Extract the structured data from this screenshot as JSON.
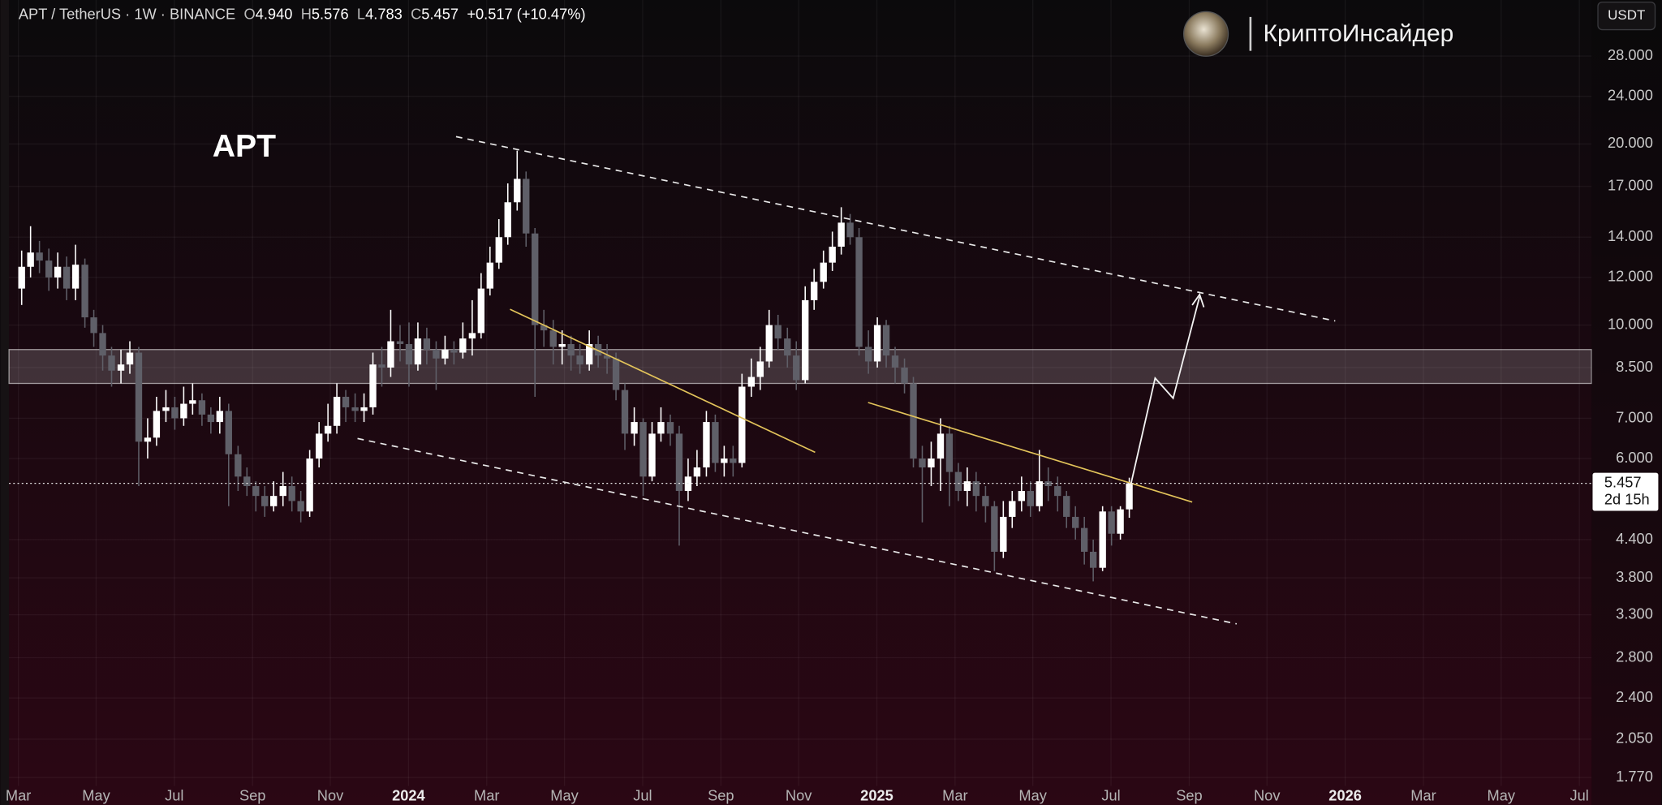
{
  "header": {
    "symbol": "APT / TetherUS · 1W · BINANCE",
    "ohlc": [
      {
        "label": "O",
        "value": "4.940"
      },
      {
        "label": "H",
        "value": "5.576"
      },
      {
        "label": "L",
        "value": "4.783"
      },
      {
        "label": "C",
        "value": "5.457"
      }
    ],
    "change": "+0.517 (+10.47%)"
  },
  "chart_data": {
    "type": "candlestick",
    "title": "APT",
    "watermark": "КриптоИнсайдер",
    "currency": "USDT",
    "countdown": "2d 15h",
    "up_color": "#ffffff",
    "down_color": "#5f5f68",
    "log_y": true,
    "grid": true,
    "xlim": [
      2023.147,
      2026.526
    ],
    "ylim": [
      1.714,
      34.7
    ],
    "x": [
      2023.174,
      2023.193,
      2023.212,
      2023.232,
      2023.251,
      2023.27,
      2023.289,
      2023.309,
      2023.328,
      2023.347,
      2023.366,
      2023.386,
      2023.405,
      2023.424,
      2023.443,
      2023.462,
      2023.482,
      2023.501,
      2023.52,
      2023.539,
      2023.559,
      2023.578,
      2023.597,
      2023.616,
      2023.636,
      2023.655,
      2023.674,
      2023.693,
      2023.712,
      2023.732,
      2023.751,
      2023.77,
      2023.789,
      2023.809,
      2023.828,
      2023.847,
      2023.866,
      2023.886,
      2023.905,
      2023.924,
      2023.943,
      2023.962,
      2023.982,
      2024.001,
      2024.02,
      2024.039,
      2024.059,
      2024.078,
      2024.097,
      2024.116,
      2024.136,
      2024.155,
      2024.174,
      2024.193,
      2024.212,
      2024.232,
      2024.251,
      2024.27,
      2024.289,
      2024.309,
      2024.328,
      2024.347,
      2024.366,
      2024.386,
      2024.405,
      2024.424,
      2024.443,
      2024.462,
      2024.482,
      2024.501,
      2024.52,
      2024.539,
      2024.559,
      2024.578,
      2024.597,
      2024.616,
      2024.636,
      2024.655,
      2024.674,
      2024.693,
      2024.712,
      2024.732,
      2024.751,
      2024.77,
      2024.789,
      2024.809,
      2024.828,
      2024.847,
      2024.866,
      2024.886,
      2024.905,
      2024.924,
      2024.943,
      2024.962,
      2024.982,
      2025.001,
      2025.02,
      2025.039,
      2025.059,
      2025.078,
      2025.097,
      2025.116,
      2025.136,
      2025.155,
      2025.174,
      2025.193,
      2025.212,
      2025.232,
      2025.251,
      2025.27,
      2025.289,
      2025.309,
      2025.328,
      2025.347,
      2025.366,
      2025.386,
      2025.405,
      2025.424,
      2025.443,
      2025.462,
      2025.482,
      2025.501,
      2025.52,
      2025.539
    ],
    "open": [
      11.5,
      12.5,
      13.2,
      12.8,
      12.0,
      12.5,
      11.5,
      12.6,
      10.3,
      9.7,
      8.9,
      8.4,
      8.6,
      9.0,
      6.4,
      6.5,
      7.2,
      7.3,
      7.0,
      7.4,
      7.5,
      7.1,
      6.9,
      7.2,
      6.1,
      5.6,
      5.4,
      5.2,
      5.0,
      5.2,
      5.4,
      5.1,
      4.9,
      6.0,
      6.6,
      6.8,
      7.6,
      7.3,
      7.2,
      7.3,
      8.6,
      8.5,
      9.4,
      9.3,
      8.6,
      9.5,
      9.1,
      8.8,
      9.1,
      9.0,
      9.5,
      9.7,
      11.5,
      12.7,
      14.0,
      16.0,
      17.5,
      14.2,
      10.0,
      9.8,
      9.2,
      9.3,
      8.9,
      8.6,
      9.3,
      8.9,
      8.8,
      7.8,
      6.6,
      6.9,
      5.6,
      6.6,
      6.9,
      6.6,
      5.3,
      5.6,
      5.8,
      6.9,
      5.9,
      6.0,
      5.9,
      7.9,
      8.2,
      8.7,
      10.0,
      9.5,
      8.9,
      8.1,
      11.0,
      11.8,
      12.7,
      13.5,
      14.8,
      14.0,
      9.2,
      8.7,
      10.0,
      8.9,
      8.5,
      8.0,
      6.0,
      5.8,
      6.0,
      6.6,
      5.7,
      5.3,
      5.5,
      5.2,
      5.0,
      4.2,
      4.8,
      5.1,
      5.3,
      5.0,
      5.5,
      5.4,
      5.2,
      4.8,
      4.6,
      4.2,
      3.95,
      4.9,
      4.5,
      4.94
    ],
    "high": [
      13.3,
      14.6,
      13.8,
      13.4,
      13.2,
      13.0,
      13.6,
      12.9,
      10.6,
      10.0,
      9.2,
      9.1,
      9.4,
      9.2,
      7.0,
      7.6,
      7.8,
      7.6,
      7.9,
      8.0,
      7.7,
      7.3,
      7.6,
      7.4,
      6.3,
      5.8,
      5.5,
      5.4,
      5.5,
      5.7,
      5.6,
      5.3,
      6.2,
      6.9,
      7.4,
      8.0,
      7.8,
      7.7,
      7.7,
      9.0,
      9.2,
      10.6,
      10.0,
      10.1,
      10.1,
      9.9,
      9.4,
      9.6,
      9.4,
      10.1,
      11.0,
      12.2,
      13.5,
      15.0,
      17.2,
      19.5,
      18.0,
      14.5,
      10.6,
      10.2,
      9.8,
      9.6,
      9.3,
      9.8,
      9.6,
      9.3,
      9.0,
      8.0,
      7.3,
      7.0,
      6.9,
      7.3,
      7.1,
      6.8,
      6.0,
      6.2,
      7.2,
      7.1,
      6.3,
      6.3,
      8.3,
      8.8,
      9.2,
      10.6,
      10.4,
      9.9,
      9.4,
      11.6,
      12.4,
      13.3,
      14.3,
      15.7,
      15.3,
      14.5,
      9.8,
      10.3,
      10.2,
      9.2,
      8.8,
      8.2,
      6.3,
      6.4,
      7.0,
      6.8,
      5.9,
      5.8,
      5.7,
      5.4,
      5.1,
      5.1,
      5.3,
      5.6,
      5.5,
      6.2,
      5.8,
      5.6,
      5.3,
      5.0,
      4.8,
      4.4,
      5.0,
      5.0,
      5.0,
      5.576
    ],
    "low": [
      10.8,
      12.0,
      12.2,
      11.4,
      11.5,
      11.0,
      11.0,
      9.9,
      9.2,
      8.4,
      7.9,
      8.0,
      8.3,
      5.4,
      6.0,
      6.3,
      6.9,
      6.7,
      6.8,
      7.1,
      6.8,
      6.6,
      6.6,
      5.0,
      5.3,
      5.2,
      4.9,
      4.8,
      4.9,
      5.0,
      4.9,
      4.7,
      4.8,
      5.8,
      6.4,
      6.6,
      6.9,
      6.9,
      6.9,
      7.1,
      7.9,
      8.2,
      8.7,
      7.9,
      8.4,
      8.6,
      7.8,
      8.6,
      8.6,
      8.8,
      8.9,
      9.5,
      11.2,
      12.4,
      13.6,
      15.5,
      13.5,
      7.6,
      9.2,
      8.6,
      8.6,
      8.4,
      8.3,
      8.4,
      8.5,
      8.3,
      7.5,
      6.2,
      6.3,
      5.2,
      5.5,
      6.4,
      6.3,
      4.3,
      5.1,
      5.4,
      5.6,
      5.7,
      5.6,
      5.6,
      5.8,
      7.6,
      7.8,
      8.5,
      9.1,
      8.5,
      7.8,
      8.0,
      10.6,
      11.5,
      12.3,
      13.1,
      13.6,
      8.9,
      8.3,
      8.5,
      8.5,
      8.0,
      7.7,
      5.8,
      4.7,
      5.4,
      5.3,
      5.0,
      5.1,
      5.0,
      4.9,
      4.7,
      3.9,
      4.1,
      4.6,
      4.9,
      4.8,
      4.9,
      5.1,
      4.9,
      4.6,
      4.4,
      4.0,
      3.75,
      3.9,
      4.3,
      4.4,
      4.783
    ],
    "close": [
      12.5,
      13.2,
      12.8,
      12.0,
      12.5,
      11.5,
      12.6,
      10.3,
      9.7,
      8.9,
      8.4,
      8.6,
      9.0,
      6.4,
      6.5,
      7.2,
      7.3,
      7.0,
      7.4,
      7.5,
      7.1,
      6.9,
      7.2,
      6.1,
      5.6,
      5.4,
      5.2,
      5.0,
      5.2,
      5.4,
      5.1,
      4.9,
      6.0,
      6.6,
      6.8,
      7.6,
      7.3,
      7.2,
      7.3,
      8.6,
      8.5,
      9.4,
      9.3,
      8.6,
      9.5,
      9.1,
      8.8,
      9.1,
      9.0,
      9.5,
      9.7,
      11.5,
      12.7,
      14.0,
      16.0,
      17.5,
      14.2,
      10.0,
      9.8,
      9.2,
      9.3,
      8.9,
      8.6,
      9.3,
      8.9,
      8.8,
      7.8,
      6.6,
      6.9,
      5.6,
      6.6,
      6.9,
      6.6,
      5.3,
      5.6,
      5.8,
      6.9,
      5.9,
      6.0,
      5.9,
      7.9,
      8.2,
      8.7,
      10.0,
      9.5,
      8.9,
      8.1,
      11.0,
      11.8,
      12.7,
      13.5,
      14.8,
      14.0,
      9.2,
      8.7,
      10.0,
      8.9,
      8.5,
      8.0,
      6.0,
      5.8,
      6.0,
      6.6,
      5.7,
      5.3,
      5.5,
      5.2,
      5.0,
      4.2,
      4.8,
      5.1,
      5.3,
      5.0,
      5.5,
      5.4,
      5.2,
      4.8,
      4.6,
      4.2,
      3.95,
      4.9,
      4.5,
      4.94,
      5.457
    ],
    "xticks": [
      {
        "value": 2023.167,
        "label": "Mar"
      },
      {
        "value": 2023.333,
        "label": "May"
      },
      {
        "value": 2023.5,
        "label": "Jul"
      },
      {
        "value": 2023.667,
        "label": "Sep"
      },
      {
        "value": 2023.833,
        "label": "Nov"
      },
      2024,
      {
        "value": 2024.167,
        "label": "Mar"
      },
      {
        "value": 2024.333,
        "label": "May"
      },
      {
        "value": 2024.5,
        "label": "Jul"
      },
      {
        "value": 2024.667,
        "label": "Sep"
      },
      {
        "value": 2024.833,
        "label": "Nov"
      },
      2025,
      {
        "value": 2025.167,
        "label": "Mar"
      },
      {
        "value": 2025.333,
        "label": "May"
      },
      {
        "value": 2025.5,
        "label": "Jul"
      },
      {
        "value": 2025.667,
        "label": "Sep"
      },
      {
        "value": 2025.833,
        "label": "Nov"
      },
      2026,
      {
        "value": 2026.167,
        "label": "Mar"
      },
      {
        "value": 2026.333,
        "label": "May"
      },
      {
        "value": 2026.5,
        "label": "Jul"
      }
    ],
    "yticks": [
      {
        "value": 28,
        "label": "28.000"
      },
      {
        "value": 24,
        "label": "24.000"
      },
      {
        "value": 20,
        "label": "20.000"
      },
      {
        "value": 17,
        "label": "17.000"
      },
      {
        "value": 14,
        "label": "14.000"
      },
      {
        "value": 12,
        "label": "12.000"
      },
      {
        "value": 10,
        "label": "10.000"
      },
      {
        "value": 8.5,
        "label": "8.500"
      },
      {
        "value": 7,
        "label": "7.000"
      },
      {
        "value": 6,
        "label": "6.000"
      },
      {
        "value": 4.4,
        "label": "4.400"
      },
      {
        "value": 3.8,
        "label": "3.800"
      },
      {
        "value": 3.3,
        "label": "3.300"
      },
      {
        "value": 2.8,
        "label": "2.800"
      },
      {
        "value": 2.4,
        "label": "2.400"
      },
      {
        "value": 2.05,
        "label": "2.050"
      },
      {
        "value": 1.77,
        "label": "1.770"
      }
    ]
  }
}
